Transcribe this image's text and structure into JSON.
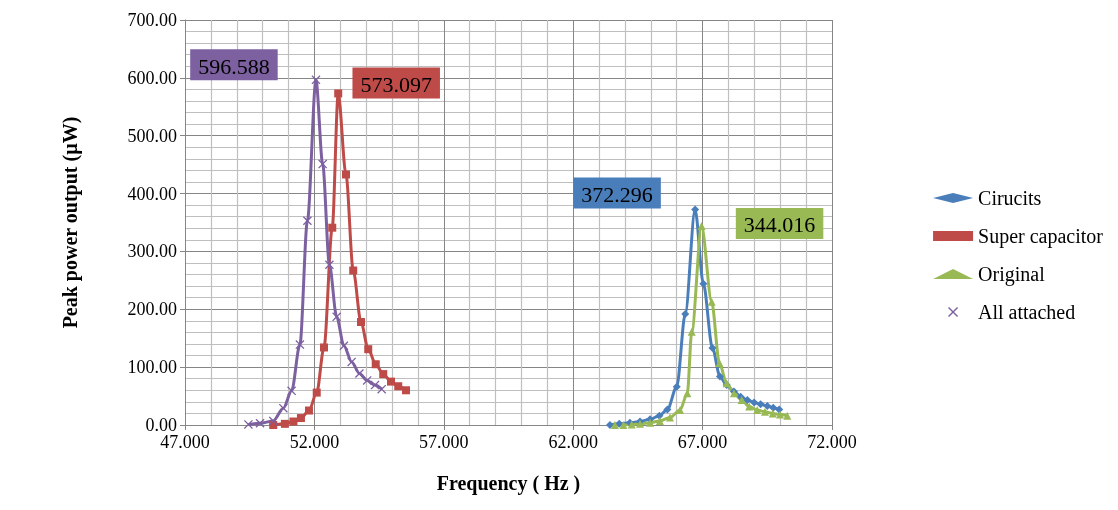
{
  "chart_data": {
    "type": "line",
    "xlabel": "Frequency ( Hz )",
    "ylabel": "Peak power output (µW)",
    "xlim": [
      47,
      72
    ],
    "xticks": [
      {
        "value": 47,
        "label": "47.000"
      },
      {
        "value": 52,
        "label": "52.000"
      },
      {
        "value": 57,
        "label": "57.000"
      },
      {
        "value": 62,
        "label": "62.000"
      },
      {
        "value": 67,
        "label": "67.000"
      },
      {
        "value": 72,
        "label": "72.000"
      }
    ],
    "ylim": [
      0,
      700
    ],
    "yticks": [
      {
        "value": 0,
        "label": "0.00"
      },
      {
        "value": 100,
        "label": "100.00"
      },
      {
        "value": 200,
        "label": "200.00"
      },
      {
        "value": 300,
        "label": "300.00"
      },
      {
        "value": 400,
        "label": "400.00"
      },
      {
        "value": 500,
        "label": "500.00"
      },
      {
        "value": 600,
        "label": "600.00"
      },
      {
        "value": 700,
        "label": "700.00"
      }
    ],
    "grid": true,
    "legend": "right",
    "line_style": "solid",
    "series": [
      {
        "name": "Cirucits",
        "color": "#4a7ebb",
        "marker": "diamond",
        "x": [
          63.42,
          63.78,
          64.19,
          64.58,
          64.97,
          65.33,
          65.64,
          66.0,
          66.33,
          66.71,
          67.03,
          67.38,
          67.67,
          67.93,
          68.21,
          68.47,
          68.73,
          68.99,
          69.24,
          69.5,
          69.73,
          69.96
        ],
        "values": [
          0,
          2,
          4,
          6,
          10,
          16,
          27,
          66,
          192,
          372.296,
          244,
          133,
          84,
          69,
          58,
          49,
          43,
          39,
          36,
          33,
          30,
          27
        ],
        "value_labels": [
          null,
          null,
          null,
          null,
          null,
          null,
          null,
          null,
          null,
          "372.296",
          null,
          null,
          null,
          null,
          null,
          null,
          null,
          null,
          null,
          null,
          null,
          null
        ]
      },
      {
        "name": "Super capacitor",
        "color": "#be4b48",
        "marker": "square",
        "x": [
          50.41,
          50.86,
          51.19,
          51.48,
          51.79,
          52.09,
          52.37,
          52.69,
          52.92,
          53.22,
          53.5,
          53.8,
          54.08,
          54.37,
          54.66,
          54.96,
          55.24,
          55.54
        ],
        "values": [
          0,
          2,
          6,
          12,
          25,
          56,
          134,
          341,
          573.097,
          433,
          267,
          178,
          131,
          105,
          88,
          75,
          67,
          60
        ],
        "value_labels": [
          null,
          null,
          null,
          null,
          null,
          null,
          null,
          null,
          "573.097",
          null,
          null,
          null,
          null,
          null,
          null,
          null,
          null,
          null
        ]
      },
      {
        "name": "Original",
        "color": "#98b954",
        "marker": "triangle",
        "x": [
          63.61,
          63.94,
          64.26,
          64.58,
          64.97,
          65.35,
          65.74,
          66.13,
          66.41,
          66.58,
          66.96,
          67.35,
          67.65,
          67.93,
          68.21,
          68.51,
          68.8,
          69.11,
          69.41,
          69.71,
          69.99,
          70.27
        ],
        "values": [
          0,
          0,
          1,
          2,
          4,
          7,
          13,
          26,
          55,
          161,
          344.016,
          213,
          107,
          72,
          55,
          43,
          32,
          26,
          23,
          20,
          18,
          16
        ],
        "value_labels": [
          null,
          null,
          null,
          null,
          null,
          null,
          null,
          null,
          null,
          null,
          "344.016",
          null,
          null,
          null,
          null,
          null,
          null,
          null,
          null,
          null,
          null,
          null
        ]
      },
      {
        "name": "All attached",
        "color": "#7d60a0",
        "marker": "cross",
        "x": [
          49.45,
          49.9,
          50.41,
          50.8,
          51.12,
          51.44,
          51.73,
          52.06,
          52.32,
          52.58,
          52.86,
          53.14,
          53.44,
          53.74,
          54.04,
          54.34,
          54.6
        ],
        "values": [
          1,
          3,
          7,
          29,
          59,
          139,
          353,
          596.588,
          451,
          277,
          187,
          137,
          109,
          89,
          77,
          69,
          62
        ],
        "value_labels": [
          null,
          null,
          null,
          null,
          null,
          null,
          null,
          "596.588",
          null,
          null,
          null,
          null,
          null,
          null,
          null,
          null,
          null
        ]
      }
    ]
  }
}
